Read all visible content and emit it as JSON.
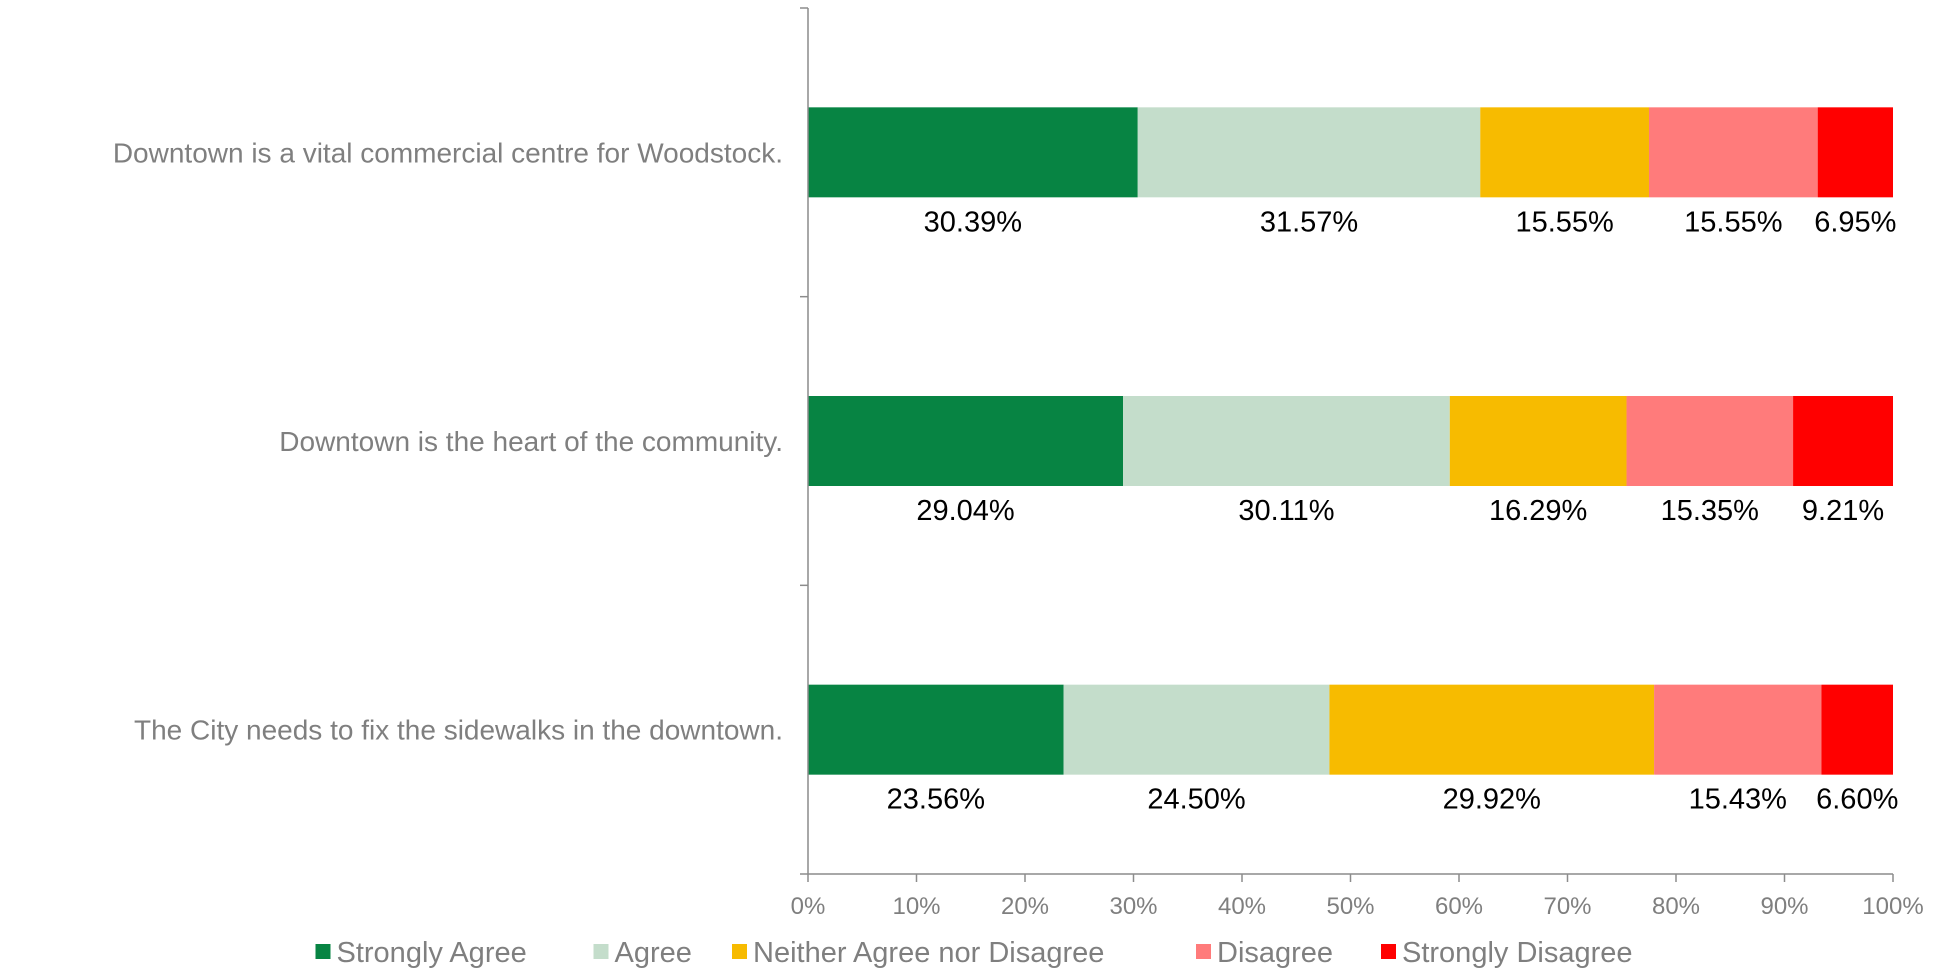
{
  "chart_data": {
    "type": "bar",
    "orientation": "horizontal",
    "stacked": "percent",
    "categories": [
      "Downtown is a vital commercial centre for Woodstock.",
      "Downtown is the heart of the community.",
      "The City needs to fix the sidewalks in the downtown."
    ],
    "series": [
      {
        "name": "Strongly Agree",
        "color": "#078443",
        "values": [
          30.39,
          29.04,
          23.56
        ],
        "labels": [
          "30.39%",
          "29.04%",
          "23.56%"
        ]
      },
      {
        "name": "Agree",
        "color": "#c4ddcb",
        "values": [
          31.57,
          30.11,
          24.5
        ],
        "labels": [
          "31.57%",
          "30.11%",
          "24.50%"
        ]
      },
      {
        "name": "Neither Agree nor Disagree",
        "color": "#f7bb00",
        "values": [
          15.55,
          16.29,
          29.92
        ],
        "labels": [
          "15.55%",
          "16.29%",
          "29.92%"
        ]
      },
      {
        "name": "Disagree",
        "color": "#ff7b7b",
        "values": [
          15.55,
          15.35,
          15.43
        ],
        "labels": [
          "15.55%",
          "15.35%",
          "15.43%"
        ]
      },
      {
        "name": "Strongly Disagree",
        "color": "#ff0000",
        "values": [
          6.95,
          9.21,
          6.6
        ],
        "labels": [
          "6.95%",
          "9.21%",
          "6.60%"
        ]
      }
    ],
    "x_ticks": [
      "0%",
      "10%",
      "20%",
      "30%",
      "40%",
      "50%",
      "60%",
      "70%",
      "80%",
      "90%",
      "100%"
    ],
    "xlim": [
      0,
      100
    ],
    "title": "",
    "xlabel": "",
    "ylabel": "",
    "grid": false,
    "legend": "bottom"
  }
}
